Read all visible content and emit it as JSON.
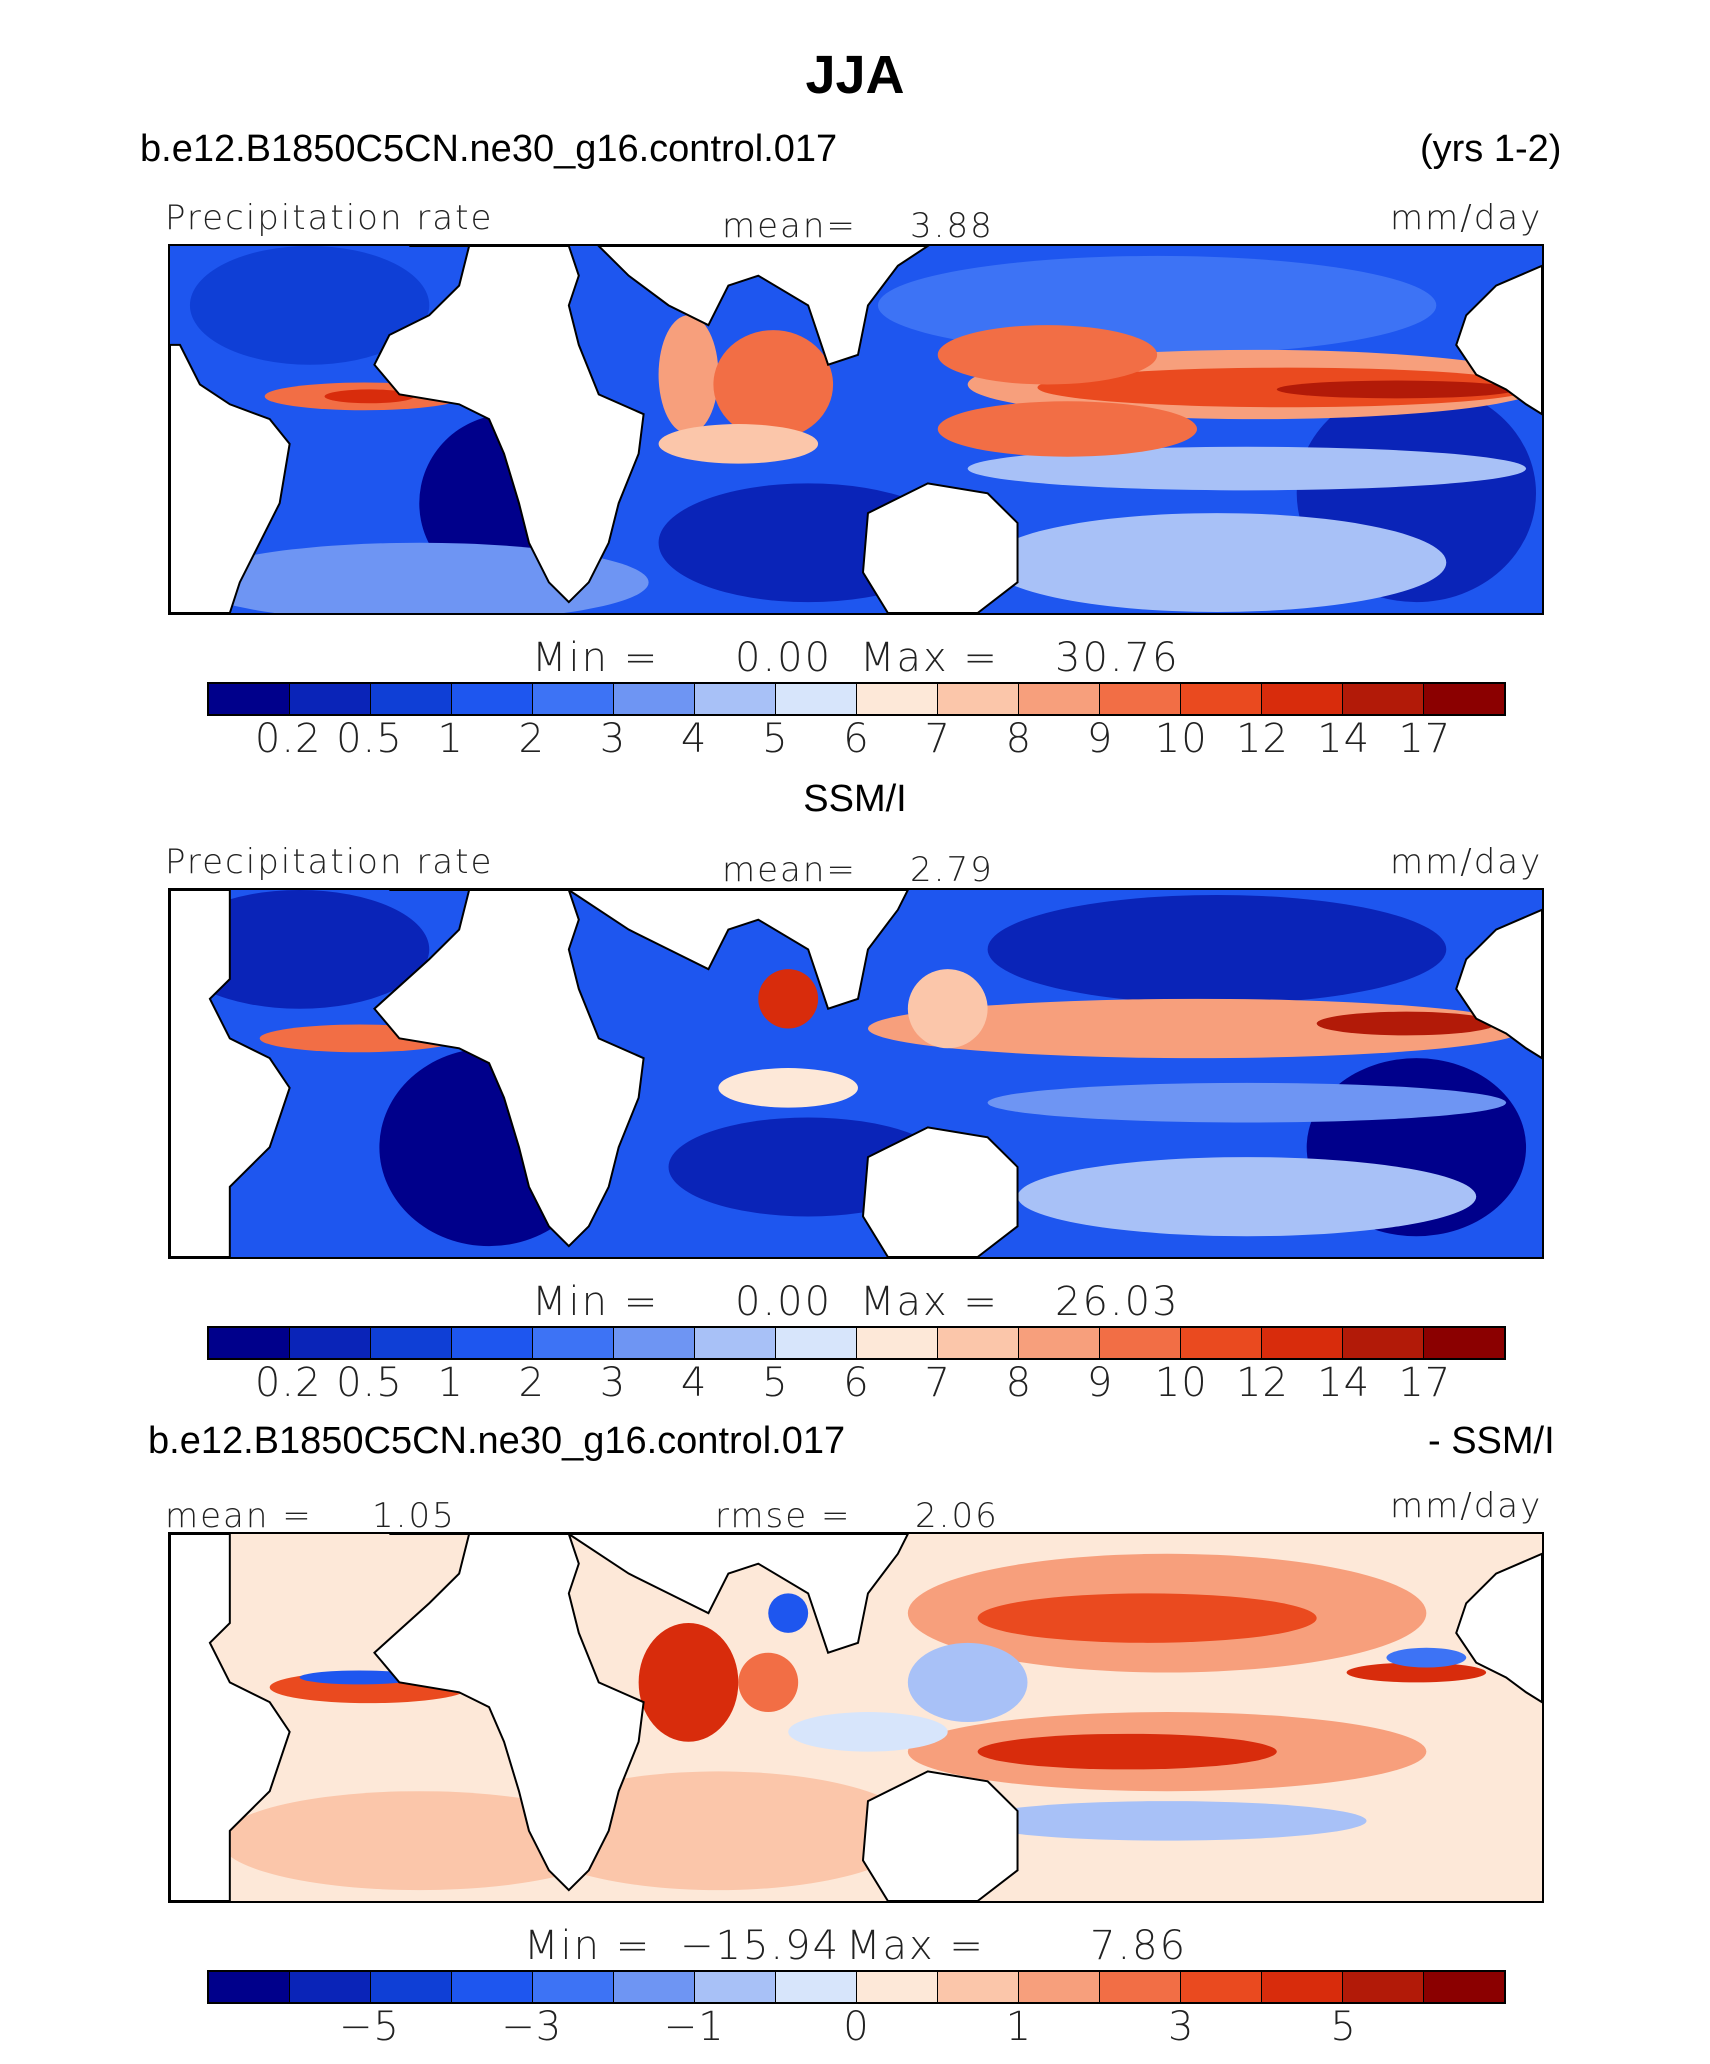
{
  "title": "JJA",
  "panel1": {
    "case": "b.e12.B1850C5CN.ne30_g16.control.017",
    "years": "(yrs 1-2)",
    "variable": "Precipitation rate",
    "mean_label": "mean=",
    "mean_value": "3.88",
    "units": "mm/day",
    "min_label": "Min =",
    "min_value": "0.00",
    "max_label": "Max =",
    "max_value": "30.76"
  },
  "panel2": {
    "case": "SSM/I",
    "variable": "Precipitation rate",
    "mean_label": "mean=",
    "mean_value": "2.79",
    "units": "mm/day",
    "min_label": "Min =",
    "min_value": "0.00",
    "max_label": "Max =",
    "max_value": "26.03"
  },
  "panel3": {
    "case": "b.e12.B1850C5CN.ne30_g16.control.017",
    "case_suffix": "- SSM/I",
    "mean_label": "mean =",
    "mean_value": "1.05",
    "rmse_label": "rmse =",
    "rmse_value": "2.06",
    "units": "mm/day",
    "min_label": "Min =",
    "min_value": "−15.94",
    "max_label": "Max =",
    "max_value": "7.86"
  },
  "colorbar_precip": {
    "colors": [
      "#00008b",
      "#0a24b8",
      "#0f3fd6",
      "#1e56ef",
      "#3d73f5",
      "#6e95f3",
      "#a8c1f7",
      "#d7e5fb",
      "#fde8d8",
      "#fbc6aa",
      "#f79f7c",
      "#f26e45",
      "#ea4a1f",
      "#d82c0c",
      "#b21a08",
      "#8b0000"
    ],
    "ticks": [
      "0.2",
      "0.5",
      "1",
      "2",
      "3",
      "4",
      "5",
      "6",
      "7",
      "8",
      "9",
      "10",
      "12",
      "14",
      "17"
    ]
  },
  "colorbar_diff": {
    "colors": [
      "#00008b",
      "#0a24b8",
      "#0f3fd6",
      "#1e56ef",
      "#3d73f5",
      "#6e95f3",
      "#a8c1f7",
      "#d7e5fb",
      "#fde8d8",
      "#fbc6aa",
      "#f79f7c",
      "#f26e45",
      "#ea4a1f",
      "#d82c0c",
      "#b21a08",
      "#8b0000"
    ],
    "ticks": [
      "−5",
      "−3",
      "−1",
      "0",
      "1",
      "3",
      "5"
    ]
  }
}
